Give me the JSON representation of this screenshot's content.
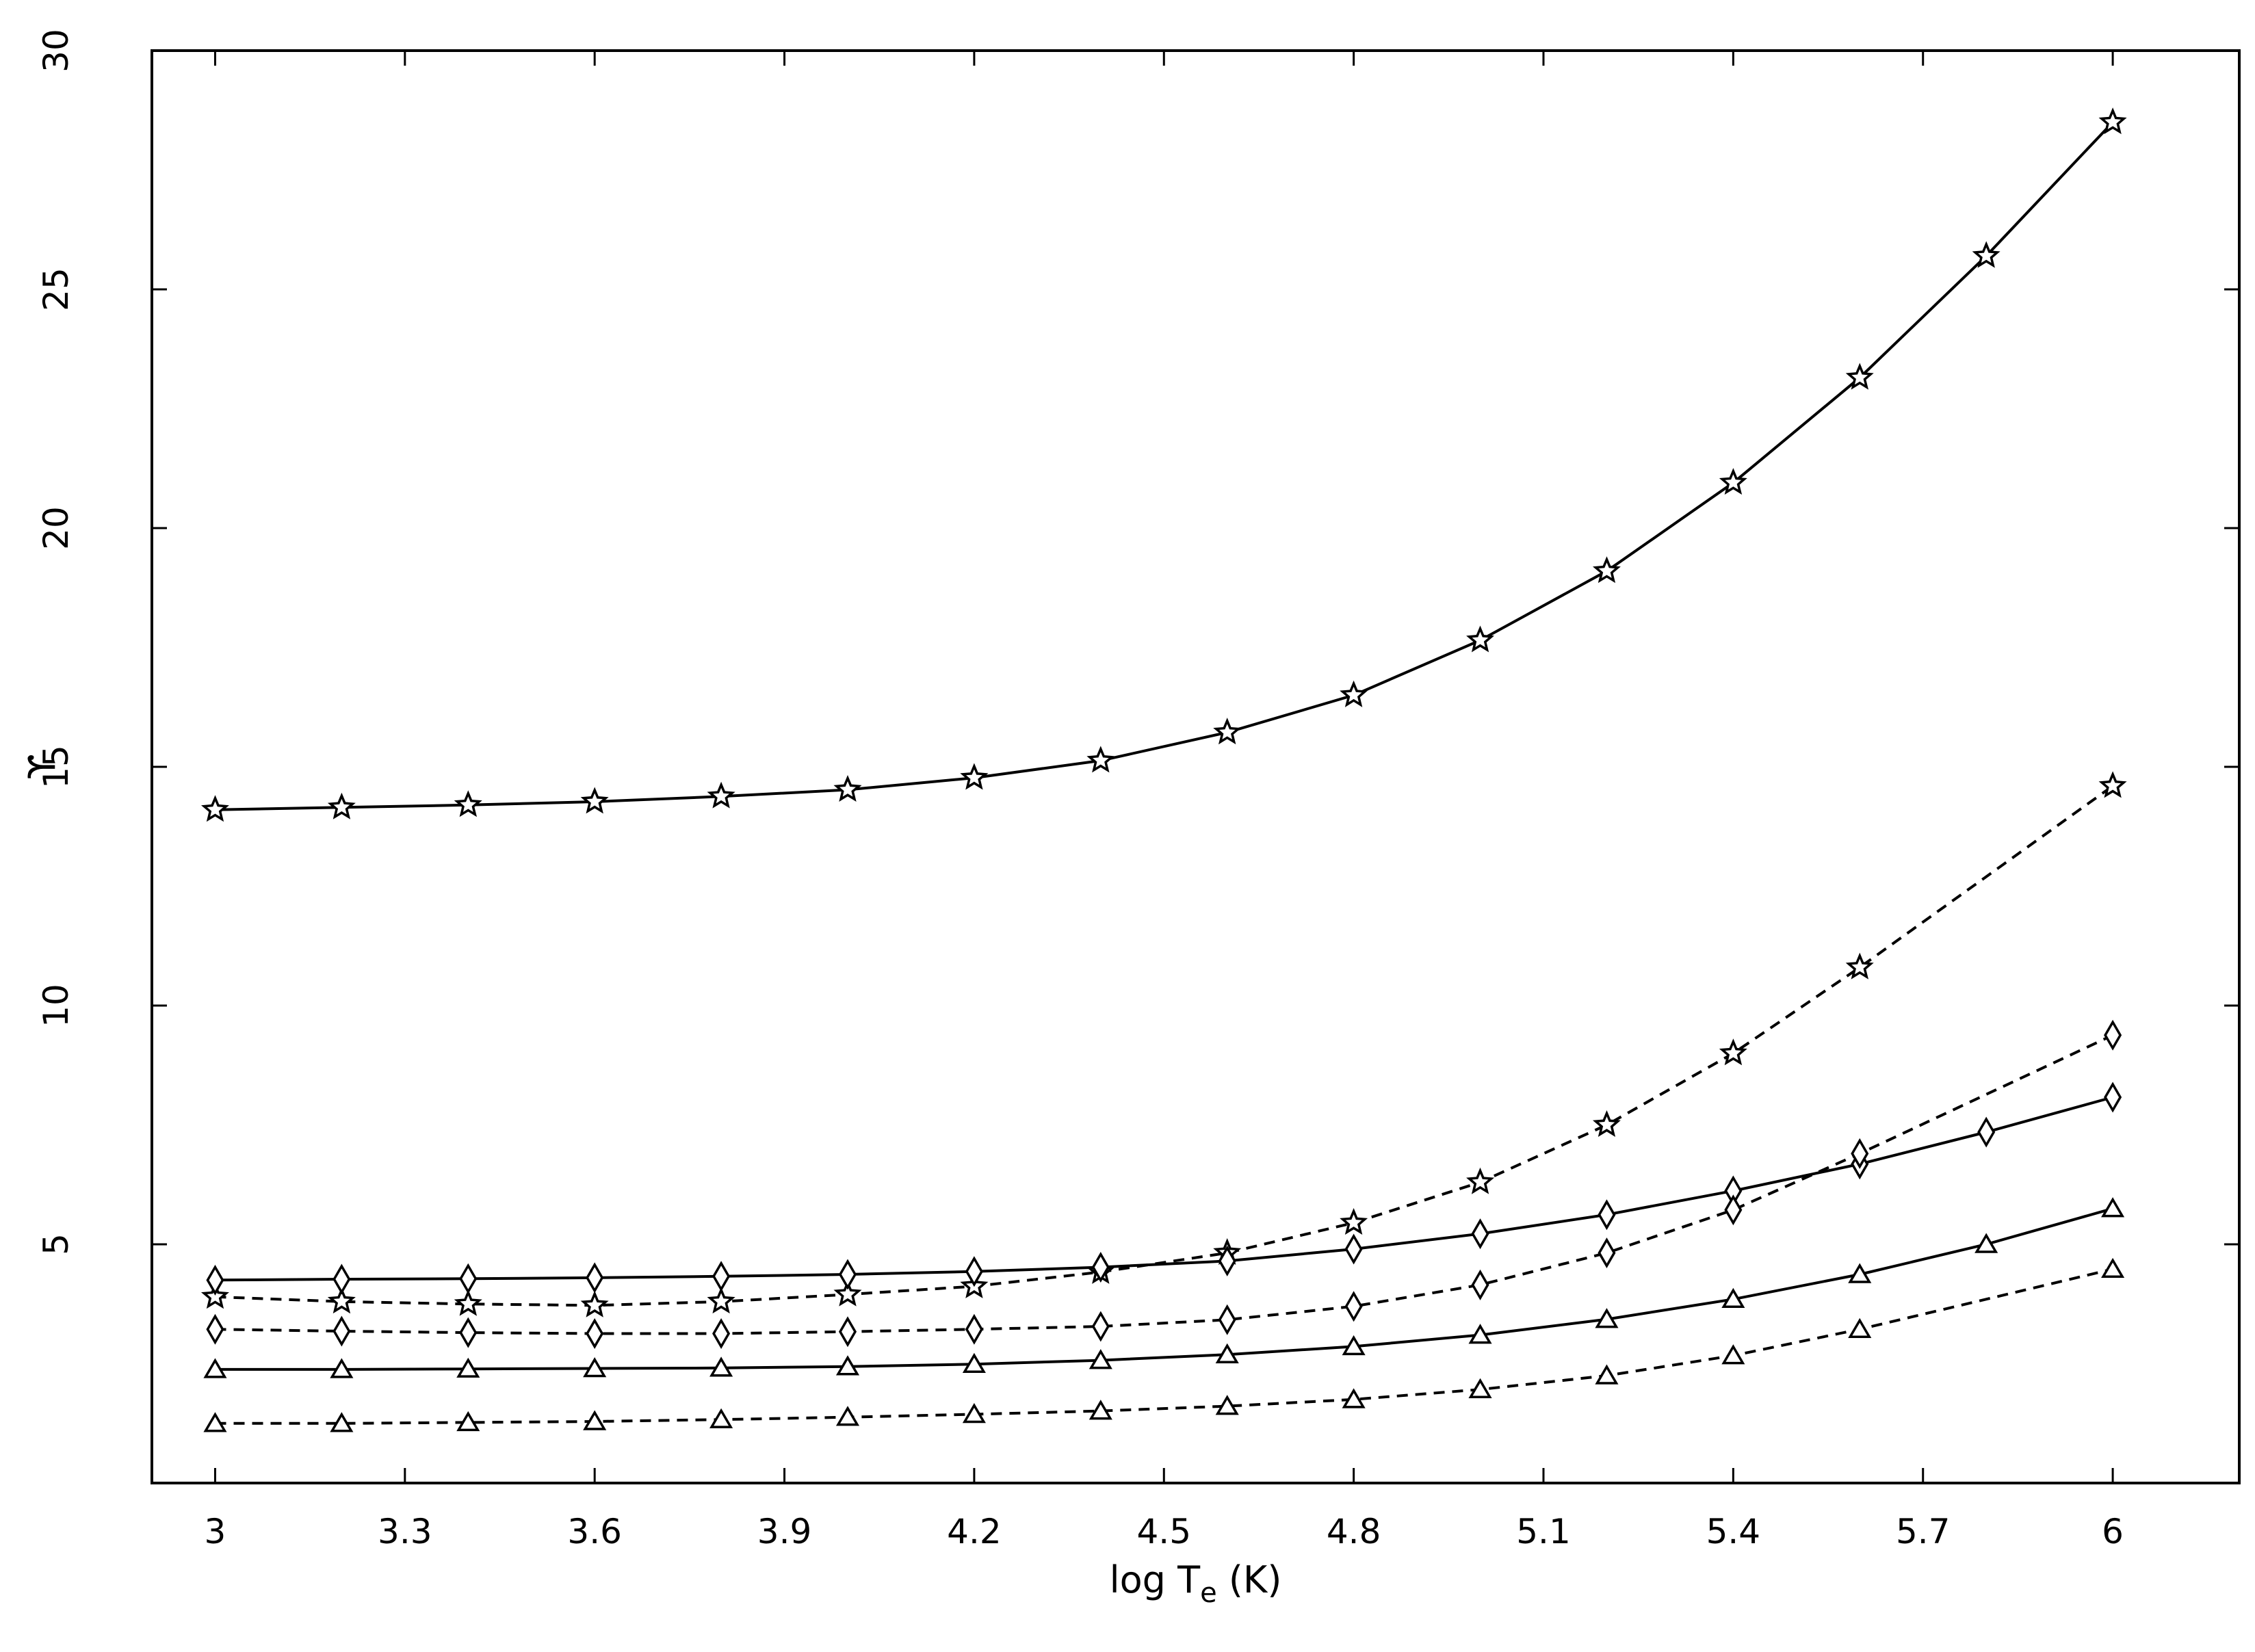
{
  "chart_data": {
    "type": "line",
    "title": "",
    "xlabel": {
      "main": "log T",
      "sub": "e",
      "unit": " (K)"
    },
    "ylabel": "ϒ",
    "xlim": [
      2.9,
      6.2
    ],
    "ylim": [
      0,
      30
    ],
    "xticks": [
      "3",
      "3.3",
      "3.6",
      "3.9",
      "4.2",
      "4.5",
      "4.8",
      "5.1",
      "5.4",
      "5.7",
      "6"
    ],
    "yticks": [
      "5",
      "10",
      "15",
      "20",
      "25",
      "30"
    ],
    "grid": false,
    "legend": "none",
    "x": [
      3.0,
      3.2,
      3.4,
      3.6,
      3.8,
      4.0,
      4.2,
      4.4,
      4.6,
      4.8,
      5.0,
      5.2,
      5.4,
      5.6,
      5.8,
      6.0
    ],
    "series": [
      {
        "marker": "star",
        "line": "solid",
        "values": [
          14.1,
          14.15,
          14.2,
          14.27,
          14.38,
          14.52,
          14.77,
          15.13,
          15.72,
          16.5,
          17.65,
          19.1,
          20.95,
          23.15,
          25.7,
          28.5
        ]
      },
      {
        "marker": "star",
        "line": "dashed",
        "values": [
          3.9,
          3.8,
          3.75,
          3.72,
          3.8,
          3.95,
          4.12,
          4.42,
          4.82,
          5.45,
          6.3,
          7.5,
          9.0,
          10.8,
          null,
          14.6
        ]
      },
      {
        "marker": "diamond",
        "line": "solid",
        "values": [
          4.25,
          4.27,
          4.28,
          4.3,
          4.33,
          4.37,
          4.43,
          4.52,
          4.65,
          4.9,
          5.22,
          5.62,
          6.12,
          6.68,
          7.35,
          8.08
        ]
      },
      {
        "marker": "diamond",
        "line": "dashed",
        "values": [
          3.22,
          3.18,
          3.15,
          3.13,
          3.13,
          3.17,
          3.22,
          3.28,
          3.42,
          3.7,
          4.15,
          4.82,
          5.72,
          6.9,
          null,
          9.38
        ]
      },
      {
        "marker": "triangle",
        "line": "solid",
        "values": [
          2.38,
          2.38,
          2.39,
          2.4,
          2.41,
          2.44,
          2.49,
          2.57,
          2.69,
          2.86,
          3.1,
          3.43,
          3.85,
          4.37,
          5.0,
          5.75
        ]
      },
      {
        "marker": "triangle",
        "line": "dashed",
        "values": [
          1.25,
          1.25,
          1.27,
          1.29,
          1.33,
          1.38,
          1.44,
          1.51,
          1.61,
          1.75,
          1.96,
          2.25,
          2.67,
          3.22,
          null,
          4.48
        ]
      }
    ]
  }
}
